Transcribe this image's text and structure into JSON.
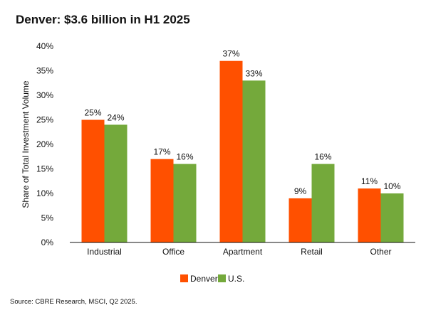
{
  "title": "Denver: $3.6 billion in H1 2025",
  "source": "Source: CBRE Research, MSCI, Q2 2025.",
  "chart_data": {
    "type": "bar",
    "title": "Denver: $3.6 billion in H1 2025",
    "xlabel": "",
    "ylabel": "Share of Total Investment Volume",
    "ylim": [
      0,
      40
    ],
    "yticks": [
      0,
      5,
      10,
      15,
      20,
      25,
      30,
      35,
      40
    ],
    "ytick_suffix": "%",
    "grid": false,
    "legend_position": "bottom-center",
    "categories": [
      "Industrial",
      "Office",
      "Apartment",
      "Retail",
      "Other"
    ],
    "series": [
      {
        "name": "Denver",
        "color": "#ff5000",
        "values": [
          25,
          17,
          37,
          9,
          11
        ],
        "labels": [
          "25%",
          "17%",
          "37%",
          "9%",
          "11%"
        ]
      },
      {
        "name": "U.S.",
        "color": "#74a93b",
        "values": [
          24,
          16,
          33,
          16,
          10
        ],
        "labels": [
          "24%",
          "16%",
          "33%",
          "16%",
          "10%"
        ]
      }
    ]
  }
}
